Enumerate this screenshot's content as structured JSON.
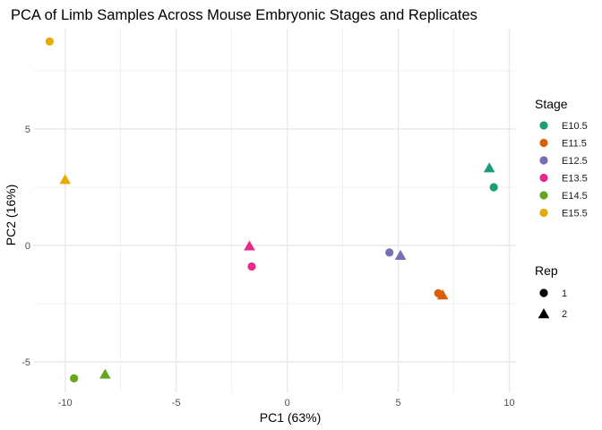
{
  "chart_data": {
    "type": "scatter",
    "title": "PCA of Limb Samples Across Mouse Embryonic Stages and Replicates",
    "xlabel": "PC1 (63%)",
    "ylabel": "PC2 (16%)",
    "xlim": [
      -11.4,
      10.3
    ],
    "ylim": [
      -6.3,
      9.3
    ],
    "x_ticks": [
      -10,
      -5,
      0,
      5,
      10
    ],
    "x_tick_labels": [
      "-10",
      "-5",
      "0",
      "5",
      "10"
    ],
    "y_ticks": [
      -5,
      0,
      5
    ],
    "y_tick_labels": [
      "-5",
      "0",
      "5"
    ],
    "grid": true,
    "legend_position": "right",
    "stage_legend": {
      "title": "Stage",
      "entries": [
        {
          "label": "E10.5",
          "color": "#1b9e77"
        },
        {
          "label": "E11.5",
          "color": "#d95f02"
        },
        {
          "label": "E12.5",
          "color": "#7570b3"
        },
        {
          "label": "E13.5",
          "color": "#e7298a"
        },
        {
          "label": "E14.5",
          "color": "#66a61e"
        },
        {
          "label": "E15.5",
          "color": "#e6ab02"
        }
      ]
    },
    "rep_legend": {
      "title": "Rep",
      "entries": [
        {
          "label": "1",
          "shape": "circle"
        },
        {
          "label": "2",
          "shape": "triangle"
        }
      ]
    },
    "points": [
      {
        "stage": "E10.5",
        "rep": "1",
        "x": 9.3,
        "y": 2.5
      },
      {
        "stage": "E10.5",
        "rep": "2",
        "x": 9.1,
        "y": 3.3
      },
      {
        "stage": "E11.5",
        "rep": "1",
        "x": 6.8,
        "y": -2.05
      },
      {
        "stage": "E11.5",
        "rep": "2",
        "x": 7.0,
        "y": -2.15
      },
      {
        "stage": "E12.5",
        "rep": "1",
        "x": 4.6,
        "y": -0.3
      },
      {
        "stage": "E12.5",
        "rep": "2",
        "x": 5.1,
        "y": -0.45
      },
      {
        "stage": "E13.5",
        "rep": "1",
        "x": -1.6,
        "y": -0.9
      },
      {
        "stage": "E13.5",
        "rep": "2",
        "x": -1.7,
        "y": -0.05
      },
      {
        "stage": "E14.5",
        "rep": "1",
        "x": -9.6,
        "y": -5.7
      },
      {
        "stage": "E14.5",
        "rep": "2",
        "x": -8.2,
        "y": -5.55
      },
      {
        "stage": "E15.5",
        "rep": "1",
        "x": -10.7,
        "y": 8.75
      },
      {
        "stage": "E15.5",
        "rep": "2",
        "x": -10.0,
        "y": 2.8
      }
    ]
  }
}
